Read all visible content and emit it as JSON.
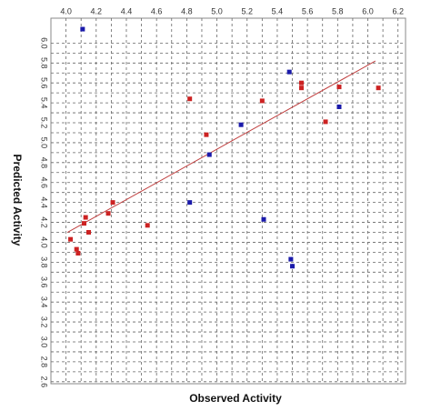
{
  "chart_data": {
    "type": "scatter",
    "x_label": "Observed Activity",
    "y_label": "Predicted Activity",
    "xlim": [
      3.9,
      6.25
    ],
    "ylim": [
      2.58,
      6.25
    ],
    "xticks": [
      {
        "value": 4,
        "label": "4.0"
      },
      4.2,
      4.4,
      4.6,
      4.8,
      {
        "value": 5,
        "label": "5.0"
      },
      5.2,
      5.4,
      5.6,
      5.8,
      {
        "value": 6,
        "label": "6.0"
      },
      6.2
    ],
    "yticks": [
      2.6,
      2.8,
      {
        "value": 3,
        "label": "3.0"
      },
      3.2,
      3.4,
      3.6,
      3.8,
      {
        "value": 4,
        "label": "4.0"
      },
      4.2,
      4.4,
      4.6,
      4.8,
      {
        "value": 5,
        "label": "5.0"
      },
      5.2,
      5.4,
      5.6,
      5.8,
      {
        "value": 6,
        "label": "6.0"
      }
    ],
    "grid": true,
    "series": [
      {
        "color": "#cc2222",
        "x": [
          4.03,
          4.07,
          4.08,
          4.12,
          4.13,
          4.15,
          4.28,
          4.31,
          4.54,
          4.82,
          4.93,
          5.3,
          5.56,
          5.56,
          5.72,
          5.81,
          6.07
        ],
        "values": [
          4.03,
          3.93,
          3.89,
          4.19,
          4.25,
          4.1,
          4.29,
          4.4,
          4.17,
          5.44,
          5.08,
          5.42,
          5.6,
          5.55,
          5.21,
          5.56,
          5.55
        ]
      },
      {
        "color": "#1a1aaa",
        "x": [
          4.11,
          4.82,
          4.95,
          5.16,
          5.31,
          5.48,
          5.49,
          5.5,
          5.81
        ],
        "values": [
          6.14,
          4.4,
          4.88,
          5.18,
          4.23,
          5.71,
          3.83,
          3.76,
          5.36
        ]
      }
    ],
    "trend_line": {
      "color": "#c04040",
      "x": [
        4.01,
        6.05
      ],
      "values": [
        4.1,
        5.82
      ]
    }
  }
}
